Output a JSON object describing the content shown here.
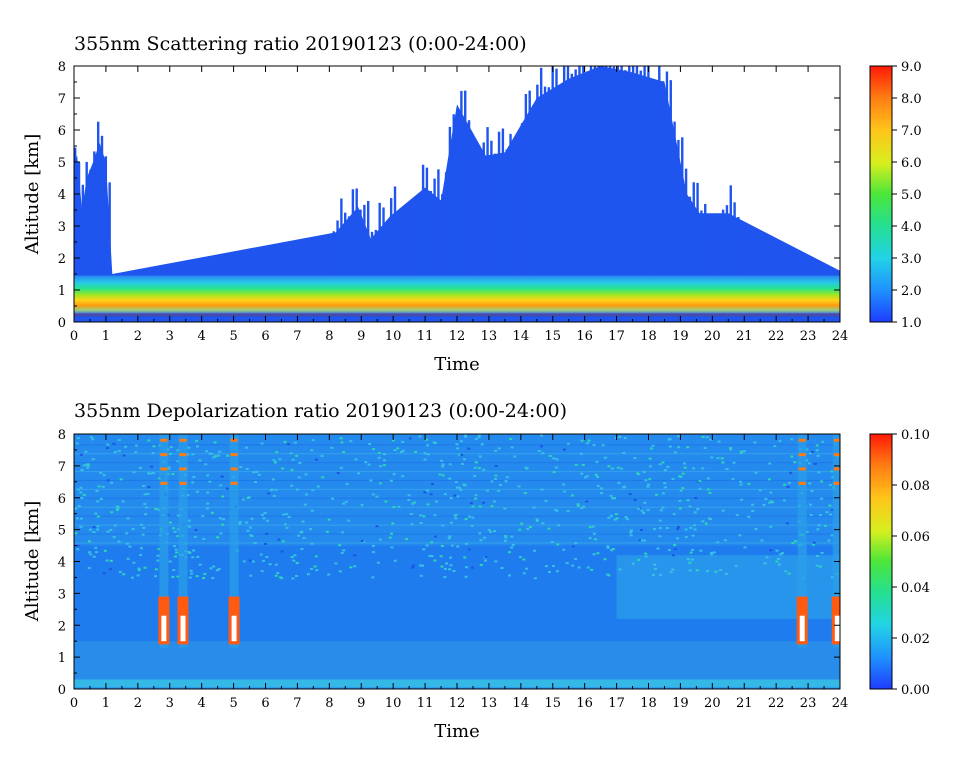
{
  "chart_data": [
    {
      "type": "heatmap",
      "title": "355nm Scattering ratio  20190123 (0:00-24:00)",
      "xlabel": "Time",
      "ylabel": "Altitude [km]",
      "xlim": [
        0,
        24
      ],
      "ylim": [
        0,
        8
      ],
      "x_ticks": [
        "0",
        "1",
        "2",
        "3",
        "4",
        "5",
        "6",
        "7",
        "8",
        "9",
        "10",
        "11",
        "12",
        "13",
        "14",
        "15",
        "16",
        "17",
        "18",
        "19",
        "20",
        "21",
        "22",
        "23",
        "24"
      ],
      "y_ticks": [
        "0",
        "1",
        "2",
        "3",
        "4",
        "5",
        "6",
        "7",
        "8"
      ],
      "colorbar": {
        "range": [
          1.0,
          9.0
        ],
        "ticks": [
          "1.0",
          "2.0",
          "3.0",
          "4.0",
          "5.0",
          "6.0",
          "7.0",
          "8.0",
          "9.0"
        ]
      },
      "cloud_tops_km": [
        {
          "t": 0.0,
          "top": 5.0
        },
        {
          "t": 0.1,
          "top": 5.2
        },
        {
          "t": 0.25,
          "top": 3.5
        },
        {
          "t": 0.4,
          "top": 4.5
        },
        {
          "t": 0.6,
          "top": 5.0
        },
        {
          "t": 0.8,
          "top": 5.6
        },
        {
          "t": 1.0,
          "top": 5.0
        },
        {
          "t": 1.2,
          "top": 1.5
        },
        {
          "t": 8.2,
          "top": 2.8
        },
        {
          "t": 8.9,
          "top": 3.6
        },
        {
          "t": 9.3,
          "top": 2.6
        },
        {
          "t": 9.9,
          "top": 3.3
        },
        {
          "t": 11.0,
          "top": 4.2
        },
        {
          "t": 11.5,
          "top": 3.8
        },
        {
          "t": 12.0,
          "top": 6.8
        },
        {
          "t": 12.9,
          "top": 5.2
        },
        {
          "t": 13.5,
          "top": 5.3
        },
        {
          "t": 14.5,
          "top": 7.0
        },
        {
          "t": 15.5,
          "top": 7.6
        },
        {
          "t": 16.5,
          "top": 8.0
        },
        {
          "t": 17.5,
          "top": 7.8
        },
        {
          "t": 18.5,
          "top": 7.5
        },
        {
          "t": 19.2,
          "top": 4.0
        },
        {
          "t": 19.6,
          "top": 3.4
        },
        {
          "t": 20.5,
          "top": 3.4
        },
        {
          "t": 24.0,
          "top": 1.6
        }
      ]
    },
    {
      "type": "heatmap",
      "title": "355nm Depolarization ratio  20190123 (0:00-24:00)",
      "xlabel": "Time",
      "ylabel": "Altitude [km]",
      "xlim": [
        0,
        24
      ],
      "ylim": [
        0,
        8
      ],
      "x_ticks": [
        "0",
        "1",
        "2",
        "3",
        "4",
        "5",
        "6",
        "7",
        "8",
        "9",
        "10",
        "11",
        "12",
        "13",
        "14",
        "15",
        "16",
        "17",
        "18",
        "19",
        "20",
        "21",
        "22",
        "23",
        "24"
      ],
      "y_ticks": [
        "0",
        "1",
        "2",
        "3",
        "4",
        "5",
        "6",
        "7",
        "8"
      ],
      "colorbar": {
        "range": [
          0.0,
          0.1
        ],
        "ticks": [
          "0.00",
          "0.02",
          "0.04",
          "0.06",
          "0.08",
          "0.10"
        ]
      },
      "high_depol_columns_h": [
        2.8,
        3.4,
        5.0,
        22.8,
        23.9
      ]
    }
  ]
}
